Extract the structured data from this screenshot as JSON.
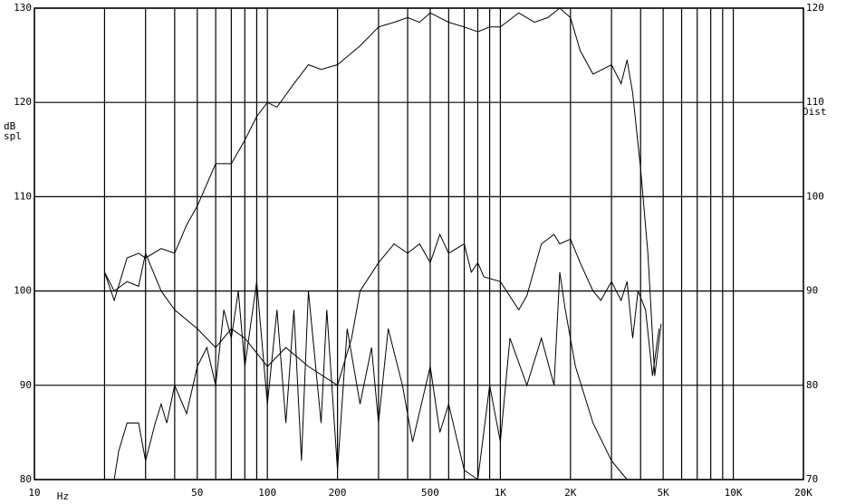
{
  "chart_data": {
    "type": "line",
    "xlog": true,
    "xlim": [
      10,
      20000
    ],
    "xticks": [
      {
        "value": 10,
        "label": "10"
      },
      {
        "value": 50,
        "label": "50"
      },
      {
        "value": 100,
        "label": "100"
      },
      {
        "value": 200,
        "label": "200"
      },
      {
        "value": 500,
        "label": "500"
      },
      {
        "value": 1000,
        "label": "1K"
      },
      {
        "value": 2000,
        "label": "2K"
      },
      {
        "value": 5000,
        "label": "5K"
      },
      {
        "value": 10000,
        "label": "10K"
      },
      {
        "value": 20000,
        "label": "20K"
      }
    ],
    "xminor": [
      20,
      30,
      40,
      60,
      70,
      80,
      90,
      300,
      400,
      600,
      700,
      800,
      900,
      3000,
      4000,
      6000,
      7000,
      8000,
      9000
    ],
    "x_label": "Hz",
    "y_label": [
      "dB",
      "spl"
    ],
    "y2_label": "Dist",
    "ylim": [
      80,
      130
    ],
    "yticks": [
      80,
      90,
      100,
      110,
      120,
      130
    ],
    "y2lim": [
      70,
      120
    ],
    "y2ticks": [
      70,
      80,
      90,
      100,
      110,
      120
    ],
    "grid": true,
    "series": [
      {
        "color": "#000000",
        "axis": "y",
        "x": [
          20,
          22,
          25,
          28,
          30,
          35,
          40,
          45,
          50,
          60,
          70,
          80,
          90,
          100,
          110,
          130,
          150,
          170,
          200,
          250,
          300,
          350,
          400,
          450,
          500,
          600,
          700,
          800,
          900,
          1000,
          1200,
          1400,
          1600,
          1800,
          2000,
          2200,
          2500,
          3000,
          3300,
          3500,
          3700,
          4000,
          4300,
          4600,
          4900
        ],
        "values": [
          102,
          99,
          103.5,
          104,
          103.5,
          104.5,
          104,
          107,
          109,
          113.5,
          113.5,
          116,
          118.5,
          120,
          119.5,
          122,
          124,
          123.5,
          124,
          126,
          128,
          128.5,
          129,
          128.5,
          129.5,
          128.5,
          128,
          127.5,
          128,
          128,
          129.5,
          128.5,
          129,
          130,
          129,
          125.5,
          123,
          124,
          122,
          124.5,
          121,
          113,
          104,
          91,
          96.5
        ]
      },
      {
        "color": "#000000",
        "axis": "y2",
        "x": [
          20,
          22,
          25,
          28,
          30,
          35,
          40,
          50,
          60,
          70,
          80,
          100,
          120,
          150,
          200,
          230,
          250,
          300,
          350,
          400,
          450,
          500,
          550,
          600,
          700,
          750,
          800,
          850,
          1000,
          1200,
          1300,
          1500,
          1700,
          1800,
          2000,
          2200,
          2500,
          2700,
          3000,
          3300,
          3500,
          3700,
          3900,
          4200,
          4500,
          4800
        ],
        "values": [
          92,
          90,
          91,
          90.5,
          94,
          90,
          88,
          86,
          84,
          86,
          85,
          82,
          84,
          82,
          80,
          85,
          90,
          93,
          95,
          94,
          95,
          93,
          96,
          94,
          95,
          92,
          93,
          91.5,
          91,
          88,
          89.5,
          95,
          96,
          95,
          95.5,
          93,
          90,
          89,
          91,
          89,
          91,
          85,
          90,
          88,
          81,
          86
        ]
      },
      {
        "color": "#000000",
        "axis": "y2",
        "x": [
          22,
          23,
          25,
          28,
          30,
          33,
          35,
          37,
          40,
          45,
          50,
          55,
          60,
          65,
          70,
          75,
          80,
          90,
          100,
          110,
          120,
          130,
          140,
          150,
          170,
          180,
          200,
          220,
          250,
          280,
          300,
          330,
          380,
          420,
          500,
          550,
          600,
          700,
          800,
          900,
          1000,
          1100,
          1300,
          1500,
          1700,
          1800,
          1900,
          2100,
          2500,
          3000,
          3500
        ],
        "values": [
          70,
          73,
          76,
          76,
          72,
          76,
          78,
          76,
          80,
          77,
          82,
          84,
          80,
          88,
          85,
          90,
          82,
          91,
          78,
          88,
          76,
          88,
          72,
          90,
          76,
          88,
          71,
          86,
          78,
          84,
          76,
          86,
          80,
          74,
          82,
          75,
          78,
          71,
          70,
          80,
          74,
          85,
          80,
          85,
          80,
          92,
          88,
          82,
          76,
          72,
          70
        ]
      }
    ]
  }
}
